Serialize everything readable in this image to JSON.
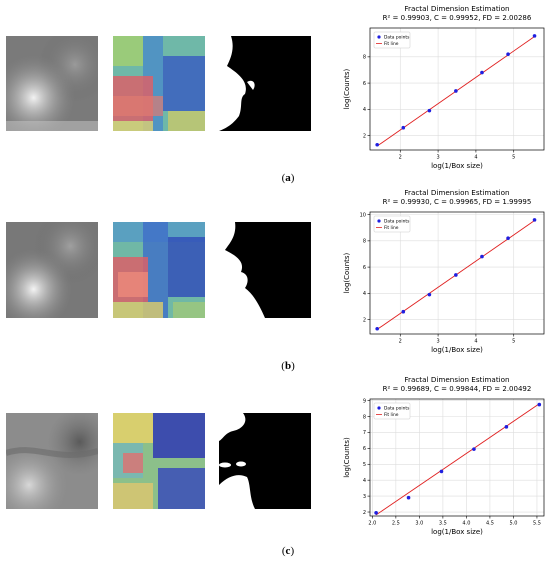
{
  "figure": {
    "rows": [
      {
        "caption_open": "(",
        "caption_letter": "a",
        "caption_close": ")",
        "chart_data": {
          "type": "scatter",
          "title": "Fractal Dimension Estimation",
          "subtitle": "R² = 0.99903, C = 0.99952,  FD = 2.00286",
          "xlabel": "log(1/Box size)",
          "ylabel": "log(Counts)",
          "xlim": [
            1.2,
            5.8
          ],
          "ylim": [
            0.9,
            10.2
          ],
          "xticks": [
            2,
            3,
            4,
            5
          ],
          "yticks": [
            2,
            4,
            6,
            8
          ],
          "series": [
            {
              "name": "Data points",
              "kind": "points",
              "color": "#1f1fe0",
              "x": [
                1.39,
                2.08,
                2.77,
                3.47,
                4.16,
                4.85,
                5.55
              ],
              "y": [
                1.3,
                2.6,
                3.9,
                5.4,
                6.8,
                8.2,
                9.6
              ]
            },
            {
              "name": "Fit line",
              "kind": "line",
              "color": "#e02020",
              "x": [
                1.39,
                5.55
              ],
              "y": [
                1.2,
                9.55
              ]
            }
          ],
          "legend": "top-left",
          "grid": true
        }
      },
      {
        "caption_open": "(",
        "caption_letter": "b",
        "caption_close": ")",
        "chart_data": {
          "type": "scatter",
          "title": "Fractal Dimension Estimation",
          "subtitle": "R² = 0.99930, C = 0.99965,  FD = 1.99995",
          "xlabel": "log(1/Box size)",
          "ylabel": "log(Counts)",
          "xlim": [
            1.2,
            5.8
          ],
          "ylim": [
            0.9,
            10.2
          ],
          "xticks": [
            2,
            3,
            4,
            5
          ],
          "yticks": [
            2,
            4,
            6,
            8,
            10
          ],
          "series": [
            {
              "name": "Data points",
              "kind": "points",
              "color": "#1f1fe0",
              "x": [
                1.39,
                2.08,
                2.77,
                3.47,
                4.16,
                4.85,
                5.55
              ],
              "y": [
                1.3,
                2.6,
                3.9,
                5.4,
                6.8,
                8.2,
                9.6
              ]
            },
            {
              "name": "Fit line",
              "kind": "line",
              "color": "#e02020",
              "x": [
                1.39,
                5.55
              ],
              "y": [
                1.25,
                9.55
              ]
            }
          ],
          "legend": "top-left",
          "grid": true
        }
      },
      {
        "caption_open": "(",
        "caption_letter": "c",
        "caption_close": ")",
        "chart_data": {
          "type": "scatter",
          "title": "Fractal Dimension Estimation",
          "subtitle": "R² = 0.99689, C = 0.99844,  FD = 2.00492",
          "xlabel": "log(1/Box size)",
          "ylabel": "log(Counts)",
          "xlim": [
            1.95,
            5.65
          ],
          "ylim": [
            1.75,
            9.1
          ],
          "xticks": [
            2.0,
            2.5,
            3.0,
            3.5,
            4.0,
            4.5,
            5.0,
            5.5
          ],
          "yticks": [
            2,
            3,
            4,
            5,
            6,
            7,
            8,
            9
          ],
          "series": [
            {
              "name": "Data points",
              "kind": "points",
              "color": "#1f1fe0",
              "x": [
                2.08,
                2.77,
                3.47,
                4.16,
                4.85,
                5.55
              ],
              "y": [
                1.95,
                2.9,
                4.55,
                5.95,
                7.35,
                8.75
              ]
            },
            {
              "name": "Fit line",
              "kind": "line",
              "color": "#e02020",
              "x": [
                2.08,
                5.55
              ],
              "y": [
                1.82,
                8.8
              ]
            }
          ],
          "legend": "top-left",
          "grid": true
        }
      }
    ]
  }
}
